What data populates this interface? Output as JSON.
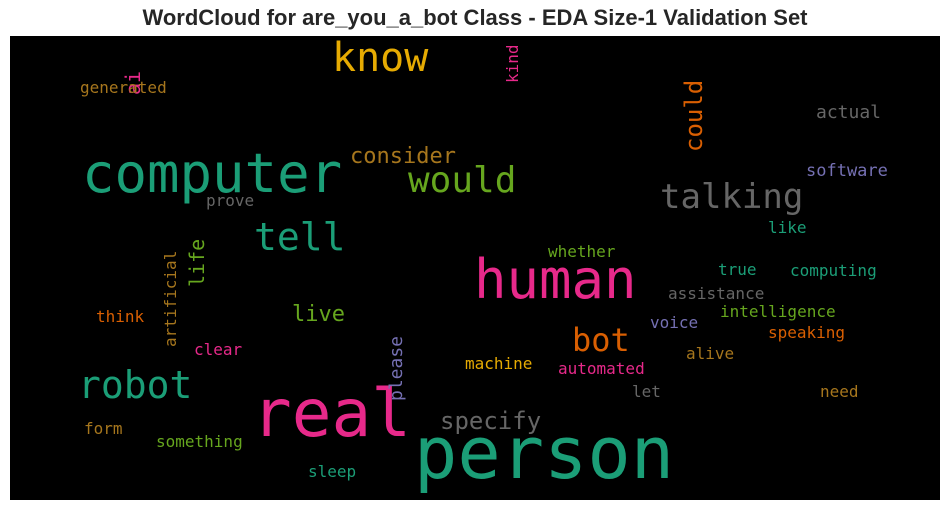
{
  "chart_data": {
    "type": "wordcloud",
    "title": "WordCloud for are_you_a_bot Class - EDA Size-1 Validation Set",
    "background": "#000000",
    "colormap": "Dark2",
    "words": [
      {
        "text": "person",
        "color": "#1b9e77",
        "orientation": "horizontal"
      },
      {
        "text": "real",
        "color": "#e7298a",
        "orientation": "horizontal"
      },
      {
        "text": "human",
        "color": "#e7298a",
        "orientation": "horizontal"
      },
      {
        "text": "computer",
        "color": "#1b9e77",
        "orientation": "horizontal"
      },
      {
        "text": "know",
        "color": "#e6ab02",
        "orientation": "horizontal"
      },
      {
        "text": "robot",
        "color": "#1b9e77",
        "orientation": "horizontal"
      },
      {
        "text": "tell",
        "color": "#1b9e77",
        "orientation": "horizontal"
      },
      {
        "text": "would",
        "color": "#66a61e",
        "orientation": "horizontal"
      },
      {
        "text": "talking",
        "color": "#666666",
        "orientation": "horizontal"
      },
      {
        "text": "bot",
        "color": "#d95f02",
        "orientation": "horizontal"
      },
      {
        "text": "could",
        "color": "#d95f02",
        "orientation": "vertical"
      },
      {
        "text": "specify",
        "color": "#666666",
        "orientation": "horizontal"
      },
      {
        "text": "consider",
        "color": "#a6761d",
        "orientation": "horizontal"
      },
      {
        "text": "live",
        "color": "#66a61e",
        "orientation": "horizontal"
      },
      {
        "text": "life",
        "color": "#66a61e",
        "orientation": "vertical"
      },
      {
        "text": "ai",
        "color": "#e7298a",
        "orientation": "vertical"
      },
      {
        "text": "please",
        "color": "#7570b3",
        "orientation": "vertical"
      },
      {
        "text": "artificial",
        "color": "#a6761d",
        "orientation": "vertical"
      },
      {
        "text": "generated",
        "color": "#a6761d",
        "orientation": "horizontal"
      },
      {
        "text": "kind",
        "color": "#e7298a",
        "orientation": "vertical"
      },
      {
        "text": "actual",
        "color": "#666666",
        "orientation": "horizontal"
      },
      {
        "text": "software",
        "color": "#7570b3",
        "orientation": "horizontal"
      },
      {
        "text": "prove",
        "color": "#666666",
        "orientation": "horizontal"
      },
      {
        "text": "like",
        "color": "#1b9e77",
        "orientation": "horizontal"
      },
      {
        "text": "whether",
        "color": "#66a61e",
        "orientation": "horizontal"
      },
      {
        "text": "true",
        "color": "#1b9e77",
        "orientation": "horizontal"
      },
      {
        "text": "computing",
        "color": "#1b9e77",
        "orientation": "horizontal"
      },
      {
        "text": "assistance",
        "color": "#666666",
        "orientation": "horizontal"
      },
      {
        "text": "intelligence",
        "color": "#66a61e",
        "orientation": "horizontal"
      },
      {
        "text": "voice",
        "color": "#7570b3",
        "orientation": "horizontal"
      },
      {
        "text": "speaking",
        "color": "#d95f02",
        "orientation": "horizontal"
      },
      {
        "text": "think",
        "color": "#d95f02",
        "orientation": "horizontal"
      },
      {
        "text": "clear",
        "color": "#e7298a",
        "orientation": "horizontal"
      },
      {
        "text": "machine",
        "color": "#e6ab02",
        "orientation": "horizontal"
      },
      {
        "text": "automated",
        "color": "#e7298a",
        "orientation": "horizontal"
      },
      {
        "text": "alive",
        "color": "#a6761d",
        "orientation": "horizontal"
      },
      {
        "text": "let",
        "color": "#666666",
        "orientation": "horizontal"
      },
      {
        "text": "need",
        "color": "#a6761d",
        "orientation": "horizontal"
      },
      {
        "text": "form",
        "color": "#a6761d",
        "orientation": "horizontal"
      },
      {
        "text": "something",
        "color": "#66a61e",
        "orientation": "horizontal"
      },
      {
        "text": "sleep",
        "color": "#1b9e77",
        "orientation": "horizontal"
      }
    ]
  }
}
